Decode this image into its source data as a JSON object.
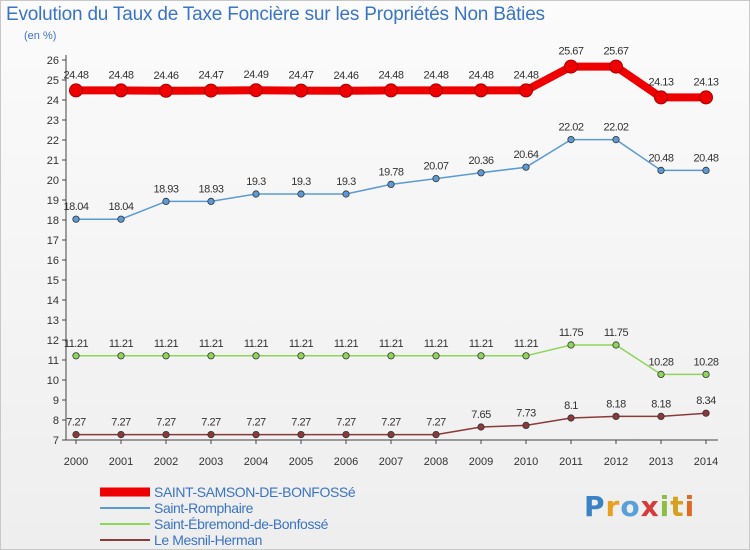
{
  "chart_data": {
    "type": "line",
    "title": "Evolution du Taux de Taxe Foncière sur les Propriétés Non Bâties",
    "ylabel": "(en %)",
    "xlabel": "",
    "ylim": [
      7,
      26
    ],
    "yticks": [
      7,
      8,
      9,
      10,
      11,
      12,
      13,
      14,
      15,
      16,
      17,
      18,
      19,
      20,
      21,
      22,
      23,
      24,
      25,
      26
    ],
    "categories": [
      "2000",
      "2001",
      "2002",
      "2003",
      "2004",
      "2005",
      "2006",
      "2007",
      "2008",
      "2009",
      "2010",
      "2011",
      "2012",
      "2013",
      "2014"
    ],
    "grid": false,
    "legend_position": "bottom-left",
    "series": [
      {
        "name": "SAINT-SAMSON-DE-BONFOSSé",
        "color": "#ee0000",
        "emphasis": true,
        "values": [
          24.48,
          24.48,
          24.46,
          24.47,
          24.49,
          24.47,
          24.46,
          24.48,
          24.48,
          24.48,
          24.48,
          25.67,
          25.67,
          24.13,
          24.13
        ],
        "labels": [
          "24.48",
          "24.48",
          "24.46",
          "24.47",
          "24.49",
          "24.47",
          "24.46",
          "24.48",
          "24.48",
          "24.48",
          "24.48",
          "25.67",
          "25.67",
          "24.13",
          "24.13"
        ]
      },
      {
        "name": "Saint-Romphaire",
        "color": "#5b9bd5",
        "emphasis": false,
        "values": [
          18.04,
          18.04,
          18.93,
          18.93,
          19.3,
          19.3,
          19.3,
          19.78,
          20.07,
          20.36,
          20.64,
          22.02,
          22.02,
          20.48,
          20.48
        ],
        "labels": [
          "18.04",
          "18.04",
          "18.93",
          "18.93",
          "19.3",
          "19.3",
          "19.3",
          "19.78",
          "20.07",
          "20.36",
          "20.64",
          "22.02",
          "22.02",
          "20.48",
          "20.48"
        ]
      },
      {
        "name": "Saint-Ébremond-de-Bonfossé",
        "color": "#8ed65a",
        "emphasis": false,
        "values": [
          11.21,
          11.21,
          11.21,
          11.21,
          11.21,
          11.21,
          11.21,
          11.21,
          11.21,
          11.21,
          11.21,
          11.75,
          11.75,
          10.28,
          10.28
        ],
        "labels": [
          "11.21",
          "11.21",
          "11.21",
          "11.21",
          "11.21",
          "11.21",
          "11.21",
          "11.21",
          "11.21",
          "11.21",
          "11.21",
          "11.75",
          "11.75",
          "10.28",
          "10.28"
        ]
      },
      {
        "name": "Le Mesnil-Herman",
        "color": "#8b3a3a",
        "emphasis": false,
        "values": [
          7.27,
          7.27,
          7.27,
          7.27,
          7.27,
          7.27,
          7.27,
          7.27,
          7.27,
          7.65,
          7.73,
          8.1,
          8.18,
          8.18,
          8.34
        ],
        "labels": [
          "7.27",
          "7.27",
          "7.27",
          "7.27",
          "7.27",
          "7.27",
          "7.27",
          "7.27",
          "7.27",
          "7.65",
          "7.73",
          "8.1",
          "8.18",
          "8.18",
          "8.34"
        ]
      }
    ]
  },
  "logo": {
    "letters": [
      "P",
      "r",
      "o",
      "x",
      "i",
      "t",
      "i"
    ],
    "colors": [
      "#3b82c4",
      "#e8a020",
      "#5aa0d8",
      "#d63a3a",
      "#8cbf3f",
      "#d6a020",
      "#e06a20"
    ]
  }
}
